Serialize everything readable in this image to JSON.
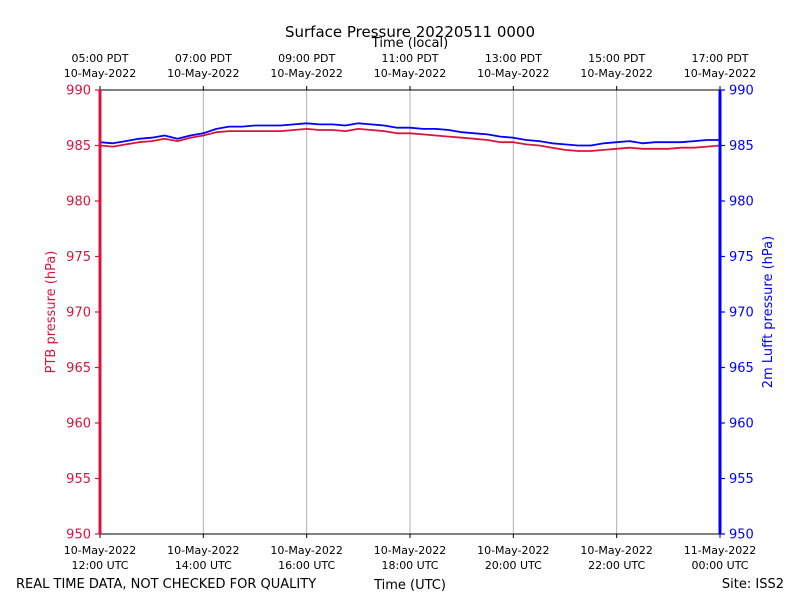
{
  "chart_data": {
    "type": "line",
    "title": "Surface Pressure 20220511 0000",
    "top_axis_label": "Time (local)",
    "xlabel": "Time (UTC)",
    "ylabel_left": "PTB pressure (hPa)",
    "ylabel_right": "2m Lufft pressure (hPa)",
    "footer_left": "REAL TIME DATA, NOT CHECKED FOR QUALITY",
    "footer_right": "Site: ISS2",
    "ylim": [
      950,
      990
    ],
    "yticks": [
      950,
      955,
      960,
      965,
      970,
      975,
      980,
      985,
      990
    ],
    "xlim_hours_utc": [
      12,
      24
    ],
    "x_ticks_utc": [
      {
        "hour": 12,
        "date": "10-May-2022",
        "time": "12:00 UTC"
      },
      {
        "hour": 14,
        "date": "10-May-2022",
        "time": "14:00 UTC"
      },
      {
        "hour": 16,
        "date": "10-May-2022",
        "time": "16:00 UTC"
      },
      {
        "hour": 18,
        "date": "10-May-2022",
        "time": "18:00 UTC"
      },
      {
        "hour": 20,
        "date": "10-May-2022",
        "time": "20:00 UTC"
      },
      {
        "hour": 22,
        "date": "10-May-2022",
        "time": "22:00 UTC"
      },
      {
        "hour": 24,
        "date": "11-May-2022",
        "time": "00:00 UTC"
      }
    ],
    "x_ticks_local": [
      {
        "hour": 12,
        "time": "05:00 PDT",
        "date": "10-May-2022"
      },
      {
        "hour": 14,
        "time": "07:00 PDT",
        "date": "10-May-2022"
      },
      {
        "hour": 16,
        "time": "09:00 PDT",
        "date": "10-May-2022"
      },
      {
        "hour": 18,
        "time": "11:00 PDT",
        "date": "10-May-2022"
      },
      {
        "hour": 20,
        "time": "13:00 PDT",
        "date": "10-May-2022"
      },
      {
        "hour": 22,
        "time": "15:00 PDT",
        "date": "10-May-2022"
      },
      {
        "hour": 24,
        "time": "17:00 PDT",
        "date": "10-May-2022"
      }
    ],
    "grid": "vertical",
    "colors": {
      "left_axis": "#dc143c",
      "right_axis": "#0000ff",
      "grid": "#b0b0b0"
    },
    "series": [
      {
        "name": "PTB pressure",
        "color": "#dc143c",
        "x": [
          12.0,
          12.25,
          12.5,
          12.75,
          13.0,
          13.25,
          13.5,
          13.75,
          14.0,
          14.25,
          14.5,
          14.75,
          15.0,
          15.25,
          15.5,
          15.75,
          16.0,
          16.25,
          16.5,
          16.75,
          17.0,
          17.25,
          17.5,
          17.75,
          18.0,
          18.25,
          18.5,
          18.75,
          19.0,
          19.25,
          19.5,
          19.75,
          20.0,
          20.25,
          20.5,
          20.75,
          21.0,
          21.25,
          21.5,
          21.75,
          22.0,
          22.25,
          22.5,
          22.75,
          23.0,
          23.25,
          23.5,
          23.75,
          24.0
        ],
        "values": [
          985.0,
          984.9,
          985.1,
          985.3,
          985.4,
          985.6,
          985.4,
          985.7,
          985.9,
          986.2,
          986.3,
          986.3,
          986.3,
          986.3,
          986.3,
          986.4,
          986.5,
          986.4,
          986.4,
          986.3,
          986.5,
          986.4,
          986.3,
          986.1,
          986.1,
          986.0,
          985.9,
          985.8,
          985.7,
          985.6,
          985.5,
          985.3,
          985.3,
          985.1,
          985.0,
          984.8,
          984.6,
          984.5,
          984.5,
          984.6,
          984.7,
          984.8,
          984.7,
          984.7,
          984.7,
          984.8,
          984.8,
          984.9,
          985.0
        ]
      },
      {
        "name": "2m Lufft pressure",
        "color": "#0000ff",
        "x": [
          12.0,
          12.25,
          12.5,
          12.75,
          13.0,
          13.25,
          13.5,
          13.75,
          14.0,
          14.25,
          14.5,
          14.75,
          15.0,
          15.25,
          15.5,
          15.75,
          16.0,
          16.25,
          16.5,
          16.75,
          17.0,
          17.25,
          17.5,
          17.75,
          18.0,
          18.25,
          18.5,
          18.75,
          19.0,
          19.25,
          19.5,
          19.75,
          20.0,
          20.25,
          20.5,
          20.75,
          21.0,
          21.25,
          21.5,
          21.75,
          22.0,
          22.25,
          22.5,
          22.75,
          23.0,
          23.25,
          23.5,
          23.75,
          24.0
        ],
        "values": [
          985.3,
          985.2,
          985.4,
          985.6,
          985.7,
          985.9,
          985.6,
          985.9,
          986.1,
          986.5,
          986.7,
          986.7,
          986.8,
          986.8,
          986.8,
          986.9,
          987.0,
          986.9,
          986.9,
          986.8,
          987.0,
          986.9,
          986.8,
          986.6,
          986.6,
          986.5,
          986.5,
          986.4,
          986.2,
          986.1,
          986.0,
          985.8,
          985.7,
          985.5,
          985.4,
          985.2,
          985.1,
          985.0,
          985.0,
          985.2,
          985.3,
          985.4,
          985.2,
          985.3,
          985.3,
          985.3,
          985.4,
          985.5,
          985.5
        ]
      }
    ]
  }
}
